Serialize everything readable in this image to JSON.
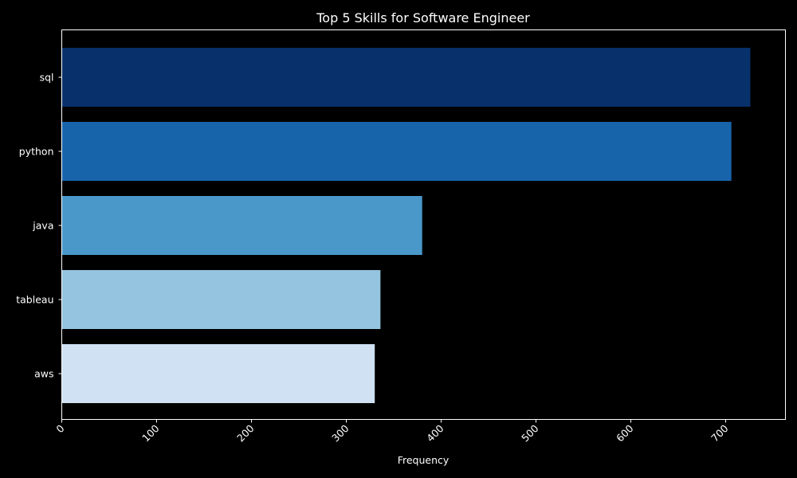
{
  "chart_data": {
    "type": "bar",
    "orientation": "horizontal",
    "title": "Top 5 Skills for Software Engineer",
    "xlabel": "Frequency",
    "ylabel": "",
    "categories": [
      "sql",
      "python",
      "java",
      "tableau",
      "aws"
    ],
    "values": [
      726,
      706,
      380,
      336,
      330
    ],
    "colors": [
      "#08306b",
      "#1764ab",
      "#4a98c9",
      "#94c4df",
      "#cfe1f2"
    ],
    "xlim": [
      0,
      763
    ],
    "xticks": [
      0,
      100,
      200,
      300,
      400,
      500,
      600,
      700
    ],
    "xtick_rotation": 45,
    "grid": false,
    "background": "#000000",
    "foreground": "#ffffff"
  }
}
